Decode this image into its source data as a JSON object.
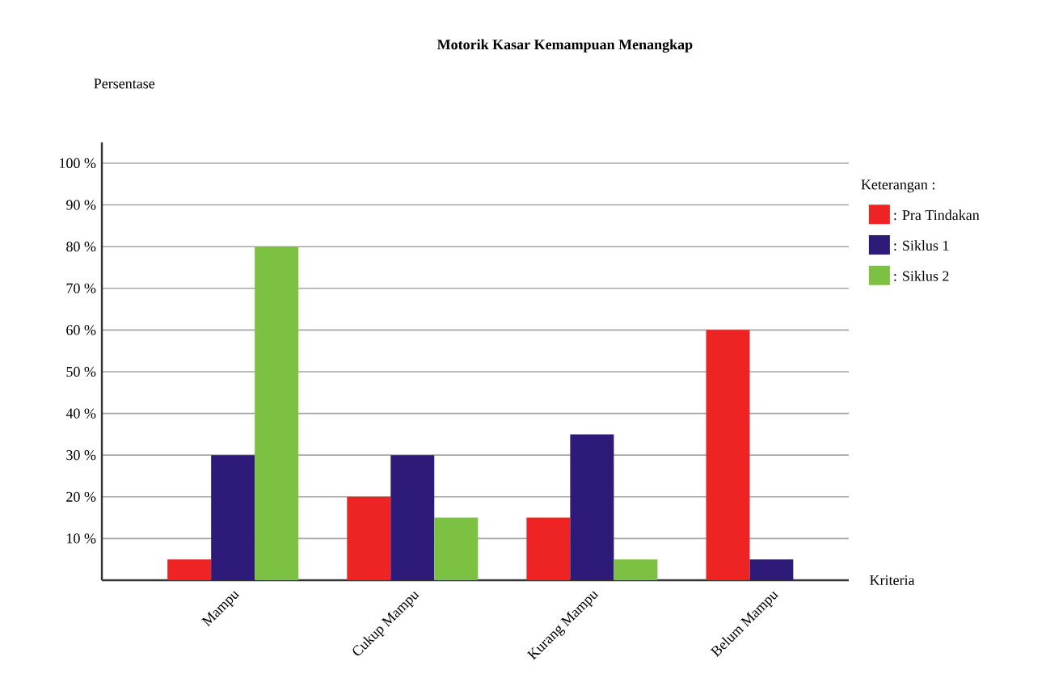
{
  "chart_data": {
    "type": "bar",
    "title": "Motorik Kasar Kemampuan Menangkap",
    "xlabel": "Kriteria",
    "ylabel": "Persentase",
    "legend_title": "Keterangan :",
    "categories": [
      "Mampu",
      "Cukup Mampu",
      "Kurang Mampu",
      "Belum Mampu"
    ],
    "series": [
      {
        "name": ": Pra Tindakan",
        "color": "#ee2424",
        "values": [
          5,
          20,
          15,
          60
        ]
      },
      {
        "name": ": Siklus 1",
        "color": "#2e1a78",
        "values": [
          30,
          30,
          35,
          5
        ]
      },
      {
        "name": ": Siklus 2",
        "color": "#7cc142",
        "values": [
          80,
          15,
          5,
          0
        ]
      }
    ],
    "ylim": [
      0,
      105
    ],
    "yticks": [
      {
        "value": 10,
        "label": "10 %"
      },
      {
        "value": 20,
        "label": "20 %"
      },
      {
        "value": 30,
        "label": "30 %"
      },
      {
        "value": 40,
        "label": "40 %"
      },
      {
        "value": 50,
        "label": "50 %"
      },
      {
        "value": 60,
        "label": "60 %"
      },
      {
        "value": 70,
        "label": "70 %"
      },
      {
        "value": 80,
        "label": "80 %"
      },
      {
        "value": 90,
        "label": "90 %"
      },
      {
        "value": 100,
        "label": "100 %"
      }
    ],
    "grid": "y",
    "legend": "right"
  }
}
